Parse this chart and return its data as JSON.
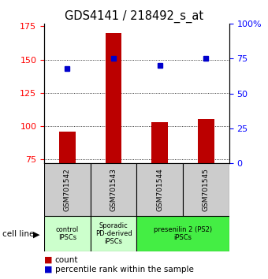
{
  "title": "GDS4141 / 218492_s_at",
  "samples": [
    "GSM701542",
    "GSM701543",
    "GSM701544",
    "GSM701545"
  ],
  "counts": [
    96,
    170,
    103,
    105
  ],
  "percentiles": [
    68,
    75,
    70,
    75
  ],
  "ylim_left": [
    72,
    177
  ],
  "ylim_right": [
    0,
    100
  ],
  "yticks_left": [
    75,
    100,
    125,
    150,
    175
  ],
  "yticks_right": [
    0,
    25,
    50,
    75,
    100
  ],
  "yticklabels_right": [
    "0",
    "25",
    "50",
    "75",
    "100%"
  ],
  "bar_color": "#bb0000",
  "dot_color": "#0000cc",
  "bar_bottom": 72,
  "groups": [
    {
      "label": "control\nIPSCs",
      "indices": [
        0
      ],
      "color": "#ccffcc"
    },
    {
      "label": "Sporadic\nPD-derived\niPSCs",
      "indices": [
        1
      ],
      "color": "#ccffcc"
    },
    {
      "label": "presenilin 2 (PS2)\niPSCs",
      "indices": [
        2,
        3
      ],
      "color": "#44ee44"
    }
  ],
  "sample_box_color": "#cccccc",
  "legend_count_label": "count",
  "legend_pct_label": "percentile rank within the sample",
  "cell_line_label": "cell line",
  "title_fontsize": 10.5
}
